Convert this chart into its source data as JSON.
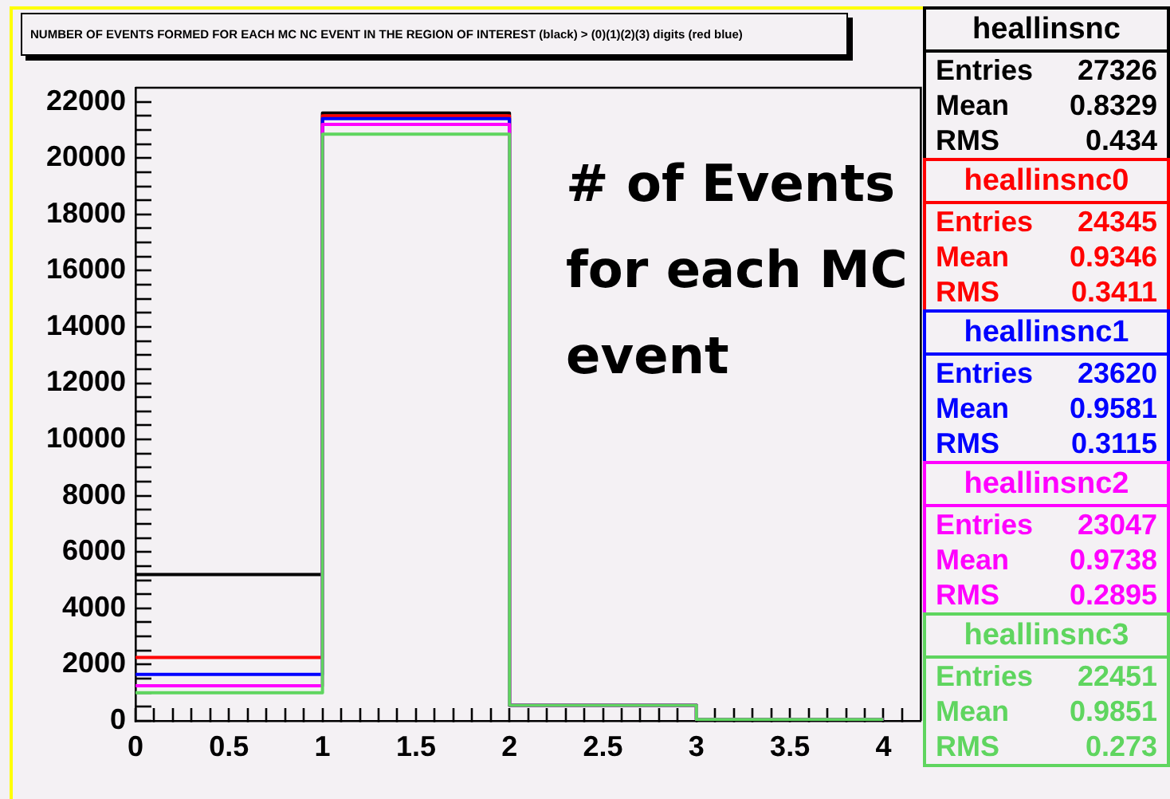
{
  "chart_data": {
    "type": "histogram",
    "title": "NUMBER OF EVENTS FORMED FOR EACH MC NC EVENT IN THE REGION OF INTEREST (black) > (0)(1)(2)(3) digits (red blue)",
    "bins": [
      0,
      1,
      2,
      3,
      4
    ],
    "series": [
      {
        "name": "heallinsnc",
        "color": "#000000",
        "values": [
          5200,
          21600,
          550,
          50
        ]
      },
      {
        "name": "heallinsnc0",
        "color": "#ff0000",
        "values": [
          2250,
          21500,
          550,
          50
        ]
      },
      {
        "name": "heallinsnc1",
        "color": "#0000ff",
        "values": [
          1650,
          21400,
          550,
          50
        ]
      },
      {
        "name": "heallinsnc2",
        "color": "#ff00ff",
        "values": [
          1250,
          21200,
          550,
          50
        ]
      },
      {
        "name": "heallinsnc3",
        "color": "#5fd55f",
        "values": [
          1000,
          20850,
          550,
          50
        ]
      }
    ],
    "xlim": [
      0,
      4.2
    ],
    "ylim": [
      0,
      22500
    ],
    "xticks": [
      0,
      {
        "value": 0.1,
        "label": null
      },
      {
        "value": 0.2,
        "label": null
      },
      {
        "value": 0.3,
        "label": null
      },
      {
        "value": 0.4,
        "label": null
      },
      0.5,
      {
        "value": 0.6,
        "label": null
      },
      {
        "value": 0.7,
        "label": null
      },
      {
        "value": 0.8,
        "label": null
      },
      {
        "value": 0.9,
        "label": null
      },
      1,
      {
        "value": 1.1,
        "label": null
      },
      {
        "value": 1.2,
        "label": null
      },
      {
        "value": 1.3,
        "label": null
      },
      {
        "value": 1.4,
        "label": null
      },
      1.5,
      {
        "value": 1.6,
        "label": null
      },
      {
        "value": 1.7,
        "label": null
      },
      {
        "value": 1.8,
        "label": null
      },
      {
        "value": 1.9,
        "label": null
      },
      2,
      {
        "value": 2.1,
        "label": null
      },
      {
        "value": 2.2,
        "label": null
      },
      {
        "value": 2.3,
        "label": null
      },
      {
        "value": 2.4,
        "label": null
      },
      2.5,
      {
        "value": 2.6,
        "label": null
      },
      {
        "value": 2.7,
        "label": null
      },
      {
        "value": 2.8,
        "label": null
      },
      {
        "value": 2.9,
        "label": null
      },
      3,
      {
        "value": 3.1,
        "label": null
      },
      {
        "value": 3.2,
        "label": null
      },
      {
        "value": 3.3,
        "label": null
      },
      {
        "value": 3.4,
        "label": null
      },
      3.5,
      {
        "value": 3.6,
        "label": null
      },
      {
        "value": 3.7,
        "label": null
      },
      {
        "value": 3.8,
        "label": null
      },
      {
        "value": 3.9,
        "label": null
      },
      4,
      {
        "value": 4.1,
        "label": null
      }
    ],
    "yticks": [
      0,
      {
        "value": 500,
        "label": null
      },
      {
        "value": 1000,
        "label": null
      },
      {
        "value": 1500,
        "label": null
      },
      2000,
      {
        "value": 2500,
        "label": null
      },
      {
        "value": 3000,
        "label": null
      },
      {
        "value": 3500,
        "label": null
      },
      4000,
      {
        "value": 4500,
        "label": null
      },
      {
        "value": 5000,
        "label": null
      },
      {
        "value": 5500,
        "label": null
      },
      6000,
      {
        "value": 6500,
        "label": null
      },
      {
        "value": 7000,
        "label": null
      },
      {
        "value": 7500,
        "label": null
      },
      8000,
      {
        "value": 8500,
        "label": null
      },
      {
        "value": 9000,
        "label": null
      },
      {
        "value": 9500,
        "label": null
      },
      10000,
      {
        "value": 10500,
        "label": null
      },
      {
        "value": 11000,
        "label": null
      },
      {
        "value": 11500,
        "label": null
      },
      12000,
      {
        "value": 12500,
        "label": null
      },
      {
        "value": 13000,
        "label": null
      },
      {
        "value": 13500,
        "label": null
      },
      14000,
      {
        "value": 14500,
        "label": null
      },
      {
        "value": 15000,
        "label": null
      },
      {
        "value": 15500,
        "label": null
      },
      16000,
      {
        "value": 16500,
        "label": null
      },
      {
        "value": 17000,
        "label": null
      },
      {
        "value": 17500,
        "label": null
      },
      18000,
      {
        "value": 18500,
        "label": null
      },
      {
        "value": 19000,
        "label": null
      },
      {
        "value": 19500,
        "label": null
      },
      20000,
      {
        "value": 20500,
        "label": null
      },
      {
        "value": 21000,
        "label": null
      },
      {
        "value": 21500,
        "label": null
      },
      22000
    ],
    "legend": "right",
    "annotations": [
      "# of Events\nfor each MC\nevent",
      "Entries 27326",
      "Mean 0.8329",
      "RMS 0.434",
      "Entries 24345",
      "Mean 0.9346",
      "RMS 0.3411",
      "Entries 23620",
      "Mean 0.9581",
      "RMS 0.3115",
      "Entries 23047",
      "Mean 0.9738",
      "RMS 0.2895",
      "Entries 22451",
      "Mean 0.9851",
      "RMS 0.273"
    ]
  }
}
